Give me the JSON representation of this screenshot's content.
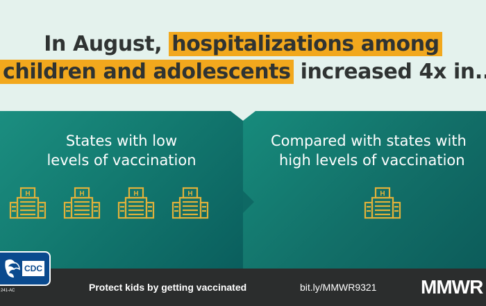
{
  "headline": {
    "line1_pre": "In August, ",
    "line1_highlight": "hospitalizations among",
    "line2_highlight": "children and adolescents",
    "line2_post": " increased 4x in..."
  },
  "left_panel": {
    "title_line1": "States with low",
    "title_line2": "levels of vaccination",
    "hospital_count": 4
  },
  "right_panel": {
    "title_line1": "Compared with states with",
    "title_line2": "high levels of vaccination",
    "hospital_count": 1
  },
  "footer": {
    "cta": "Protect kids by getting vaccinated",
    "link": "bit.ly/MMWR9321",
    "brand": "MMWR"
  },
  "logo": {
    "text": "CDC",
    "tag": "241-AC"
  },
  "colors": {
    "highlight": "#f2a81d",
    "panel": "#137a70",
    "icon": "#e2b23a",
    "footer": "#2b2d2d",
    "cdc_blue": "#0a4a8e"
  },
  "icons": [
    "hospital-icon",
    "hhs-eagle-icon"
  ]
}
